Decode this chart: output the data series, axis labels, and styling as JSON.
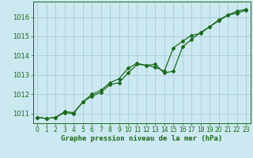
{
  "x": [
    0,
    1,
    2,
    3,
    4,
    5,
    6,
    7,
    8,
    9,
    10,
    11,
    12,
    13,
    14,
    15,
    16,
    17,
    18,
    19,
    20,
    21,
    22,
    23
  ],
  "line1": [
    1010.8,
    1010.75,
    1010.8,
    1011.05,
    1011.0,
    1011.6,
    1011.9,
    1012.1,
    1012.5,
    1012.6,
    1013.1,
    1013.55,
    1013.5,
    1013.4,
    1013.2,
    1014.4,
    1014.75,
    1015.05,
    1015.15,
    1015.5,
    1015.8,
    1016.1,
    1016.2,
    1016.35
  ],
  "line2": [
    1010.8,
    1010.75,
    1010.8,
    1011.1,
    1011.05,
    1011.6,
    1012.0,
    1012.2,
    1012.6,
    1012.8,
    1013.35,
    1013.6,
    1013.5,
    1013.55,
    1013.1,
    1013.2,
    1014.45,
    1014.85,
    1015.2,
    1015.5,
    1015.85,
    1016.1,
    1016.3,
    1016.4
  ],
  "bg_color": "#cce8f0",
  "grid_color": "#aaccd8",
  "line_color": "#1a6b1a",
  "marker": "D",
  "marker_size": 2.0,
  "line_width": 0.9,
  "xlabel": "Graphe pression niveau de la mer (hPa)",
  "xlabel_color": "#1a6b1a",
  "xlabel_fontsize": 6.5,
  "ylabel_fontsize": 6.0,
  "tick_color": "#1a6b1a",
  "tick_fontsize": 5.5,
  "ylim": [
    1010.5,
    1016.8
  ],
  "yticks": [
    1011,
    1012,
    1013,
    1014,
    1015,
    1016
  ],
  "xticks": [
    0,
    1,
    2,
    3,
    4,
    5,
    6,
    7,
    8,
    9,
    10,
    11,
    12,
    13,
    14,
    15,
    16,
    17,
    18,
    19,
    20,
    21,
    22,
    23
  ]
}
